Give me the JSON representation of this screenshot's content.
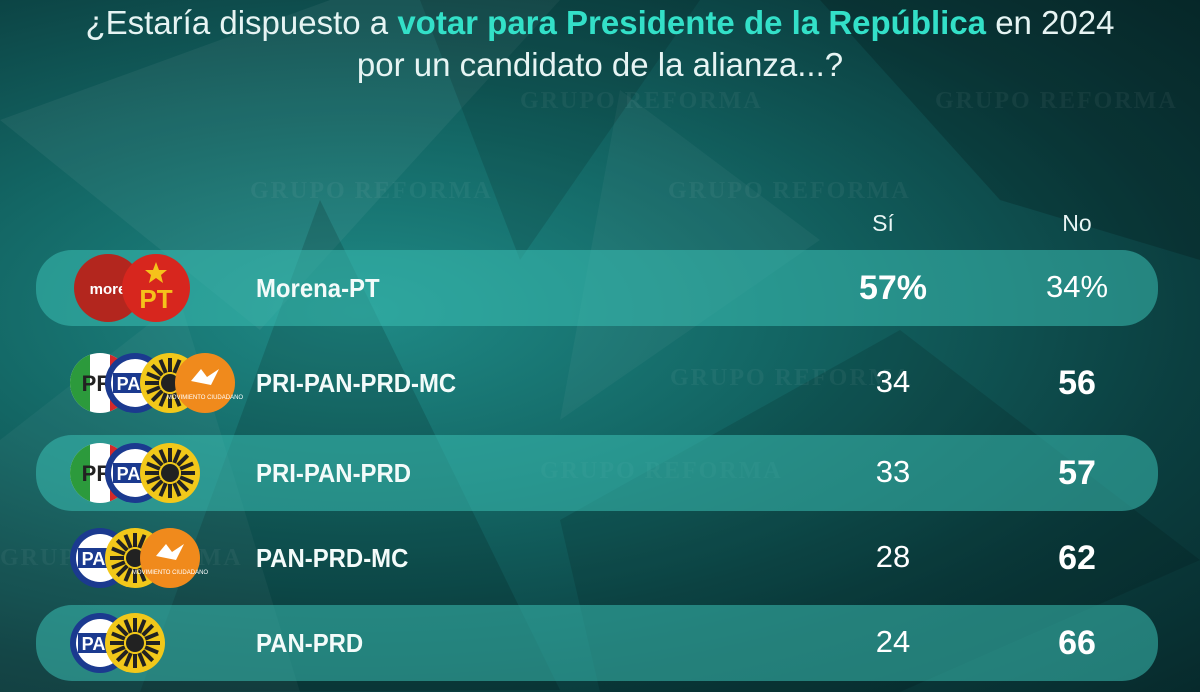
{
  "title": {
    "pre": "¿Estaría dispuesto a ",
    "highlight": "votar para Presidente de la República",
    "post": " en 2024",
    "line2": "por un candidato de la alianza...?"
  },
  "watermark": "GRUPO REFORMA",
  "colors": {
    "highlight": "#33e0c8",
    "band": "#3abeb2",
    "morena": "#b3261e",
    "pt": "#d7261e",
    "pri_green": "#2c9a3c",
    "pri_red": "#d42a2a",
    "pan_blue": "#1b3a8f",
    "prd_yellow": "#f2c81a",
    "mc_orange": "#f08a1c"
  },
  "logo_texts": {
    "morena": "more",
    "pt": "PT",
    "pri": "PRI",
    "pan": "PAN",
    "mc": "MOVIMIENTO CIUDADANO"
  },
  "chart_data": {
    "type": "table",
    "columns": [
      "Sí",
      "No"
    ],
    "rows": [
      {
        "alliance": "Morena-PT",
        "logos": [
          "morena-icon",
          "pt-icon"
        ],
        "si": "57%",
        "no": "34%",
        "bold": "si"
      },
      {
        "alliance": "PRI-PAN-PRD-MC",
        "logos": [
          "pri-icon",
          "pan-icon",
          "prd-icon",
          "mc-icon"
        ],
        "si": "34",
        "no": "56",
        "bold": "no"
      },
      {
        "alliance": "PRI-PAN-PRD",
        "logos": [
          "pri-icon",
          "pan-icon",
          "prd-icon"
        ],
        "si": "33",
        "no": "57",
        "bold": "no"
      },
      {
        "alliance": "PAN-PRD-MC",
        "logos": [
          "pan-icon",
          "prd-icon",
          "mc-icon"
        ],
        "si": "28",
        "no": "62",
        "bold": "no"
      },
      {
        "alliance": "PAN-PRD",
        "logos": [
          "pan-icon",
          "prd-icon"
        ],
        "si": "24",
        "no": "66",
        "bold": "no"
      }
    ]
  }
}
